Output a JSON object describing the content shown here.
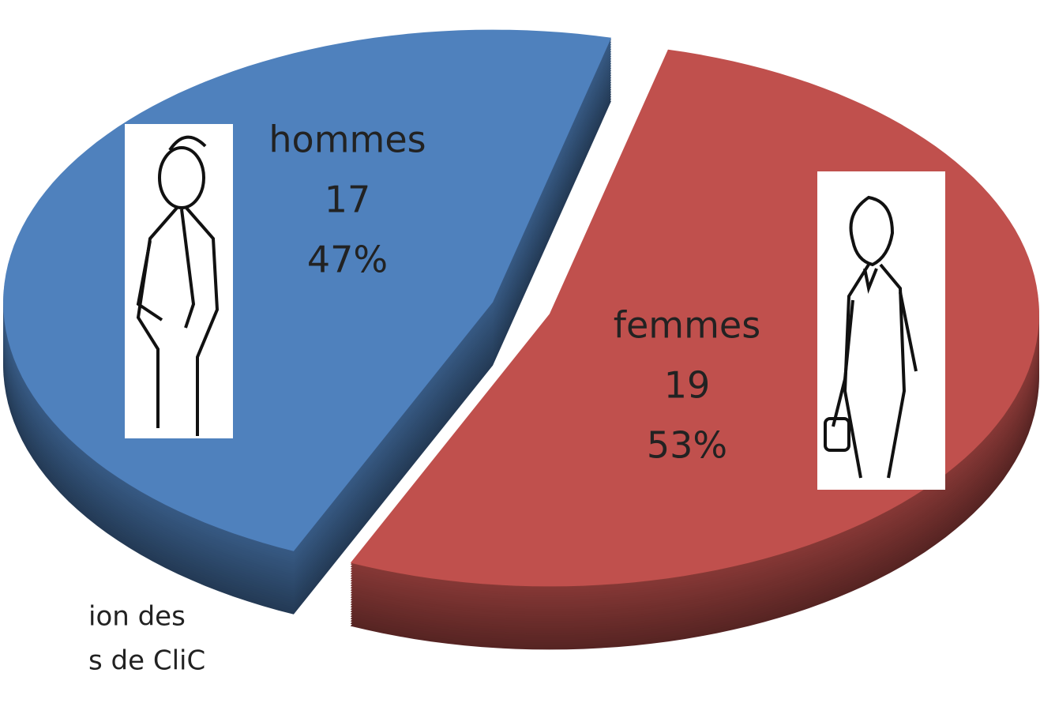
{
  "chart_data": {
    "type": "pie3d",
    "categories": [
      "hommes",
      "femmes"
    ],
    "values": [
      17,
      19
    ],
    "percent_values": [
      47,
      53
    ],
    "percent_labels": [
      "47%",
      "53%"
    ],
    "colors": [
      "#4f81bd",
      "#c0504d"
    ],
    "annotations": [
      "ion des",
      "s de CliC"
    ]
  }
}
